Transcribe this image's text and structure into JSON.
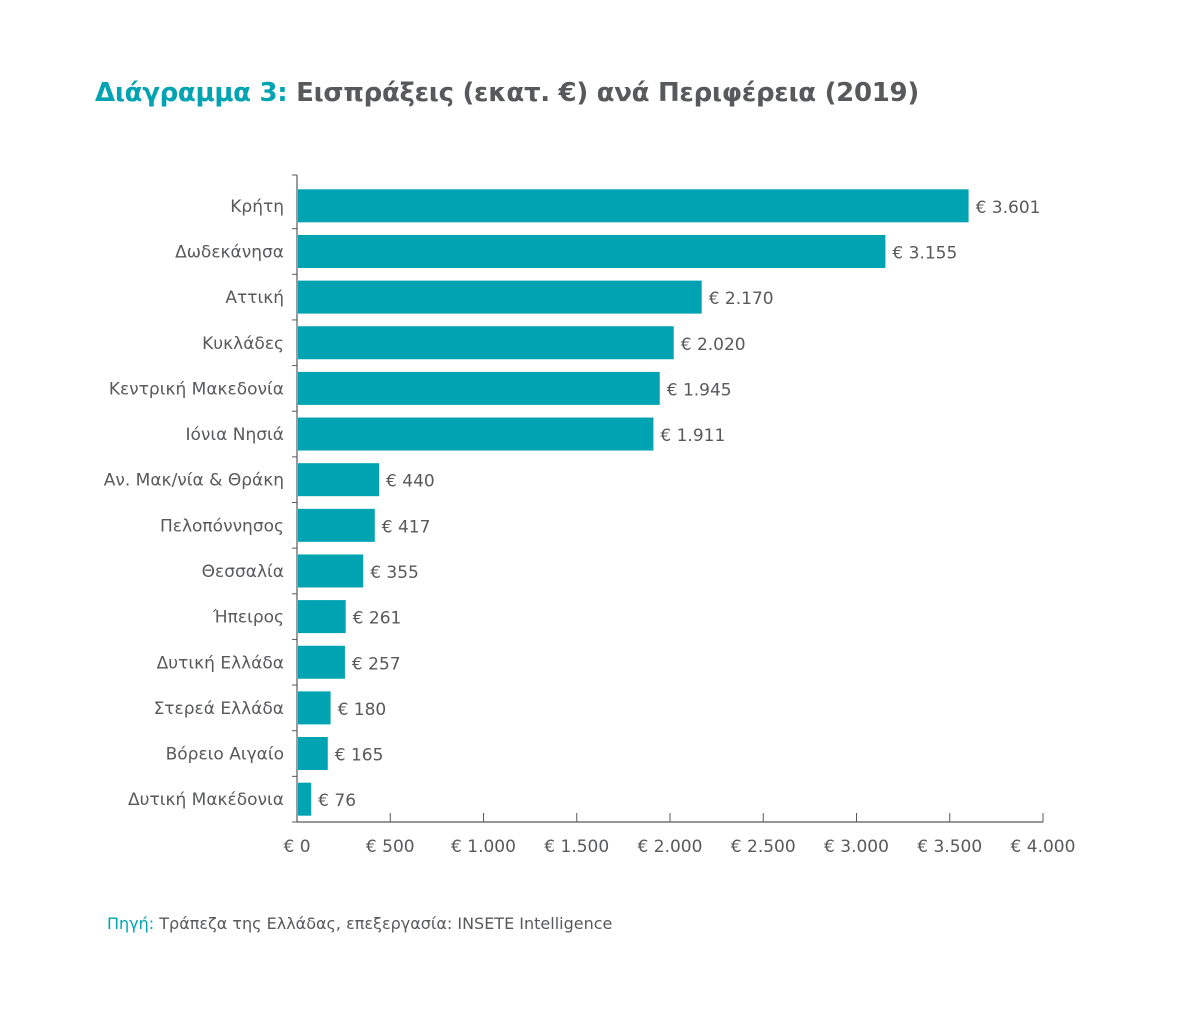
{
  "chart_data": {
    "type": "bar",
    "orientation": "horizontal",
    "title_prefix": "Διάγραμμα 3:",
    "title": "Εισπράξεις (εκατ. €) ανά Περιφέρεια (2019)",
    "categories": [
      "Κρήτη",
      "Δωδεκάνησα",
      "Αττική",
      "Κυκλάδες",
      "Κεντρική Μακεδονία",
      "Ιόνια Νησιά",
      "Αν. Μακ/νία & Θράκη",
      "Πελοπόννησος",
      "Θεσσαλία",
      "Ήπειρος",
      "Δυτική Ελλάδα",
      "Στερεά Ελλάδα",
      "Βόρειο Αιγαίο",
      "Δυτική Μακέδονια"
    ],
    "values": [
      3601,
      3155,
      2170,
      2020,
      1945,
      1911,
      440,
      417,
      355,
      261,
      257,
      180,
      165,
      76
    ],
    "data_labels": [
      "€ 3.601",
      "€ 3.155",
      "€ 2.170",
      "€ 2.020",
      "€ 1.945",
      "€ 1.911",
      "€ 440",
      "€ 417",
      "€ 355",
      "€ 261",
      "€ 257",
      "€ 180",
      "€ 165",
      "€ 76"
    ],
    "xlim": [
      0,
      4000
    ],
    "xticks": [
      0,
      500,
      1000,
      1500,
      2000,
      2500,
      3000,
      3500,
      4000
    ],
    "xtick_labels": [
      "€ 0",
      "€ 500",
      "€ 1.000",
      "€ 1.500",
      "€ 2.000",
      "€ 2.500",
      "€ 3.000",
      "€ 3.500",
      "€ 4.000"
    ],
    "xlabel": "",
    "ylabel": "",
    "grid": false,
    "bar_color": "#00a3b1",
    "accent_color": "#00a3b1",
    "text_color": "#58595b"
  },
  "source": {
    "label": "Πηγή:",
    "text": "Τράπεζα της Ελλάδας, επεξεργασία: INSETE Intelligence"
  }
}
